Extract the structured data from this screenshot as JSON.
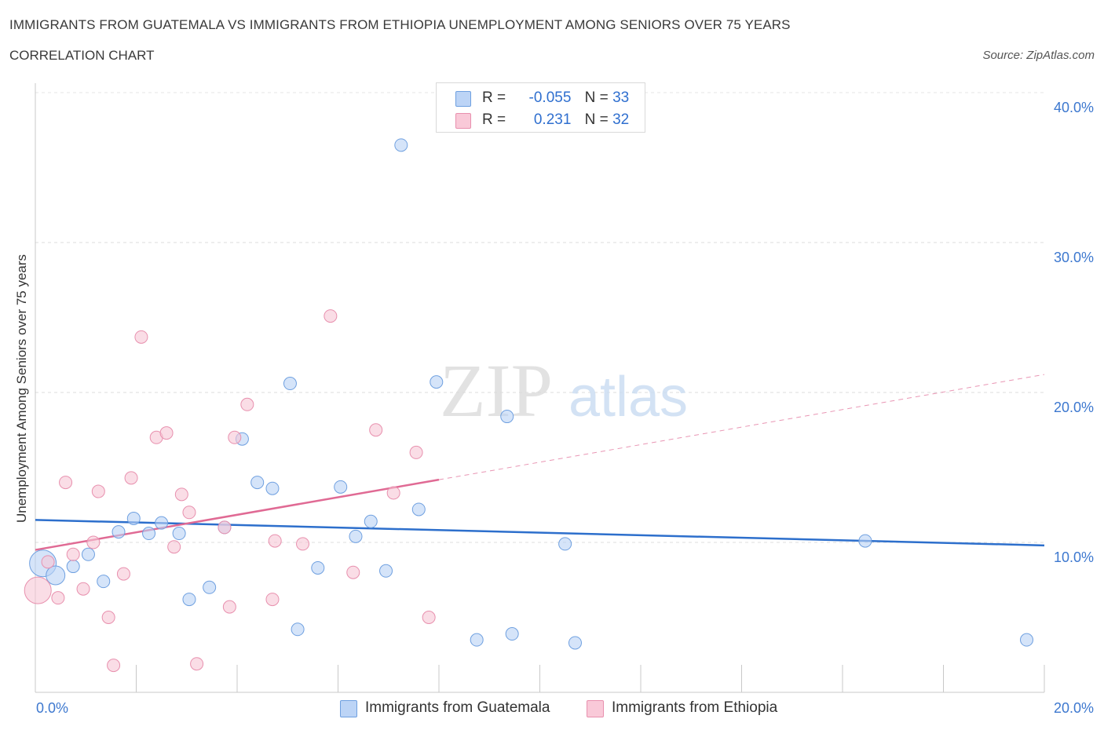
{
  "header": {
    "title": "IMMIGRANTS FROM GUATEMALA VS IMMIGRANTS FROM ETHIOPIA UNEMPLOYMENT AMONG SENIORS OVER 75 YEARS",
    "subtitle": "CORRELATION CHART",
    "source": "Source: ZipAtlas.com"
  },
  "watermark": {
    "zip": "ZIP",
    "atlas": "atlas"
  },
  "legend_stats": [
    {
      "r_label": "R =",
      "r_value": "-0.055",
      "n_label": "N =",
      "n_value": "33"
    },
    {
      "r_label": "R =",
      "r_value": "0.231",
      "n_label": "N =",
      "n_value": "32"
    }
  ],
  "chart_data": {
    "type": "scatter",
    "title": "IMMIGRANTS FROM GUATEMALA VS IMMIGRANTS FROM ETHIOPIA UNEMPLOYMENT AMONG SENIORS OVER 75 YEARS",
    "subtitle": "CORRELATION CHART",
    "ylabel": "Unemployment Among Seniors over 75 years",
    "xlabel": "",
    "xlim": [
      0,
      20
    ],
    "ylim": [
      0,
      40
    ],
    "x_ticks": [
      "0.0%",
      "20.0%"
    ],
    "y_ticks": [
      "10.0%",
      "20.0%",
      "30.0%",
      "40.0%"
    ],
    "y_tick_values": [
      10,
      20,
      30,
      40
    ],
    "grid": true,
    "legend_position": "top-center",
    "series": [
      {
        "name": "Immigrants from Guatemala",
        "color": "#6fa0e0",
        "fill": "#b9d2f5",
        "R": -0.055,
        "N": 33,
        "trend": {
          "x0": 0,
          "y0": 11.5,
          "x1": 20,
          "y1": 9.8,
          "dashed_from": null
        },
        "points": [
          [
            0.15,
            8.6,
            3
          ],
          [
            0.4,
            7.8,
            2
          ],
          [
            0.75,
            8.4,
            1
          ],
          [
            1.05,
            9.2,
            1
          ],
          [
            1.35,
            7.4,
            1
          ],
          [
            1.65,
            10.7,
            1
          ],
          [
            1.95,
            11.6,
            1
          ],
          [
            2.25,
            10.6,
            1
          ],
          [
            2.5,
            11.3,
            1
          ],
          [
            2.85,
            10.6,
            1
          ],
          [
            3.05,
            6.2,
            1
          ],
          [
            3.45,
            7.0,
            1
          ],
          [
            3.75,
            11.0,
            1
          ],
          [
            4.1,
            16.9,
            1
          ],
          [
            4.4,
            14.0,
            1
          ],
          [
            4.7,
            13.6,
            1
          ],
          [
            5.05,
            20.6,
            1
          ],
          [
            5.2,
            4.2,
            1
          ],
          [
            5.6,
            8.3,
            1
          ],
          [
            6.05,
            13.7,
            1
          ],
          [
            6.35,
            10.4,
            1
          ],
          [
            6.65,
            11.4,
            1
          ],
          [
            6.95,
            8.1,
            1
          ],
          [
            7.25,
            36.5,
            1
          ],
          [
            7.6,
            12.2,
            1
          ],
          [
            7.95,
            20.7,
            1
          ],
          [
            8.75,
            3.5,
            1
          ],
          [
            9.35,
            18.4,
            1
          ],
          [
            9.45,
            3.9,
            1
          ],
          [
            10.5,
            9.9,
            1
          ],
          [
            10.7,
            3.3,
            1
          ],
          [
            16.45,
            10.1,
            1
          ],
          [
            19.65,
            3.5,
            1
          ]
        ]
      },
      {
        "name": "Immigrants from Ethiopia",
        "color": "#e890ae",
        "fill": "#f7c6d6",
        "R": 0.231,
        "N": 32,
        "trend": {
          "x0": 0,
          "y0": 9.5,
          "x1": 20,
          "y1": 21.2,
          "dashed_from": 8.0
        },
        "points": [
          [
            0.05,
            6.8,
            3
          ],
          [
            0.25,
            8.7,
            1
          ],
          [
            0.45,
            6.3,
            1
          ],
          [
            0.6,
            14.0,
            1
          ],
          [
            0.75,
            9.2,
            1
          ],
          [
            0.95,
            6.9,
            1
          ],
          [
            1.15,
            10.0,
            1
          ],
          [
            1.25,
            13.4,
            1
          ],
          [
            1.45,
            5.0,
            1
          ],
          [
            1.55,
            1.8,
            1
          ],
          [
            1.75,
            7.9,
            1
          ],
          [
            1.9,
            14.3,
            1
          ],
          [
            2.1,
            23.7,
            1
          ],
          [
            2.4,
            17.0,
            1
          ],
          [
            2.6,
            17.3,
            1
          ],
          [
            2.75,
            9.7,
            1
          ],
          [
            2.9,
            13.2,
            1
          ],
          [
            3.05,
            12.0,
            1
          ],
          [
            3.2,
            1.9,
            1
          ],
          [
            3.75,
            11.0,
            1
          ],
          [
            3.85,
            5.7,
            1
          ],
          [
            3.95,
            17.0,
            1
          ],
          [
            4.2,
            19.2,
            1
          ],
          [
            4.7,
            6.2,
            1
          ],
          [
            4.75,
            10.1,
            1
          ],
          [
            5.3,
            9.9,
            1
          ],
          [
            5.85,
            25.1,
            1
          ],
          [
            6.3,
            8.0,
            1
          ],
          [
            6.75,
            17.5,
            1
          ],
          [
            7.1,
            13.3,
            1
          ],
          [
            7.55,
            16.0,
            1
          ],
          [
            7.8,
            5.0,
            1
          ]
        ]
      }
    ]
  }
}
